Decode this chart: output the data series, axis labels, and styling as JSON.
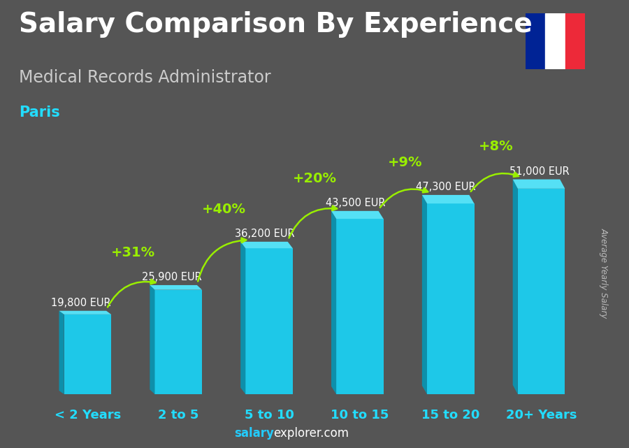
{
  "title": "Salary Comparison By Experience",
  "subtitle": "Medical Records Administrator",
  "city": "Paris",
  "ylabel": "Average Yearly Salary",
  "watermark_salary": "salary",
  "watermark_rest": "explorer.com",
  "categories": [
    "< 2 Years",
    "2 to 5",
    "5 to 10",
    "10 to 15",
    "15 to 20",
    "20+ Years"
  ],
  "values": [
    19800,
    25900,
    36200,
    43500,
    47300,
    51000
  ],
  "labels": [
    "19,800 EUR",
    "25,900 EUR",
    "36,200 EUR",
    "43,500 EUR",
    "47,300 EUR",
    "51,000 EUR"
  ],
  "pct_changes": [
    "+31%",
    "+40%",
    "+20%",
    "+9%",
    "+8%"
  ],
  "bar_color_main": "#1EC8E8",
  "bar_color_left": "#0E8FAA",
  "bar_color_top": "#55E0F5",
  "bg_color": "#555555",
  "title_color": "#ffffff",
  "subtitle_color": "#cccccc",
  "city_color": "#22DDFF",
  "label_color": "#ffffff",
  "pct_color": "#99EE00",
  "xtick_color": "#22DDFF",
  "ylabel_color": "#bbbbbb",
  "wm_color1": "#22CCFF",
  "wm_color2": "#ffffff",
  "flag_colors": [
    "#002395",
    "#ffffff",
    "#ED2939"
  ],
  "ylim_max": 60000,
  "title_fontsize": 28,
  "subtitle_fontsize": 17,
  "city_fontsize": 15,
  "label_fontsize": 10.5,
  "pct_fontsize": 14,
  "xtick_fontsize": 13,
  "ylabel_fontsize": 8.5,
  "wm_fontsize": 12
}
